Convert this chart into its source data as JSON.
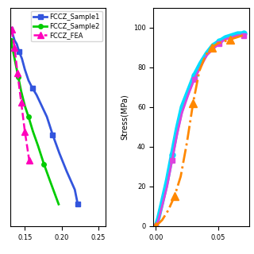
{
  "left_plot": {
    "xlim": [
      0.13,
      0.26
    ],
    "ylim": [
      25,
      85
    ],
    "xticks": [
      0.15,
      0.2,
      0.25
    ],
    "yticks": [],
    "sample1": {
      "x": [
        0.13,
        0.133,
        0.136,
        0.139,
        0.142,
        0.146,
        0.15,
        0.155,
        0.16,
        0.166,
        0.173,
        0.18,
        0.188,
        0.197,
        0.207,
        0.218,
        0.222
      ],
      "y": [
        79,
        78,
        76,
        75,
        73,
        71,
        68,
        65,
        63,
        61,
        58,
        55,
        50,
        45,
        40,
        35,
        31
      ],
      "color": "#3355dd",
      "linewidth": 2.0,
      "marker": "s",
      "markersize": 4,
      "markevery": 4,
      "label": "FCCZ_Sample1"
    },
    "sample2": {
      "x": [
        0.131,
        0.134,
        0.137,
        0.141,
        0.145,
        0.15,
        0.155,
        0.161,
        0.168,
        0.176,
        0.185,
        0.196
      ],
      "y": [
        76,
        73,
        70,
        66,
        62,
        58,
        55,
        51,
        47,
        42,
        37,
        31
      ],
      "color": "#00cc00",
      "linewidth": 2.0,
      "marker": "o",
      "markersize": 4,
      "markevery": 3,
      "label": "FCCZ_Sample2"
    },
    "fea": {
      "x": [
        0.132,
        0.136,
        0.14,
        0.145,
        0.15,
        0.156
      ],
      "y": [
        79,
        74,
        67,
        59,
        51,
        43
      ],
      "color": "#ff00bb",
      "linewidth": 1.8,
      "linestyle": "--",
      "marker": "^",
      "markersize": 6,
      "markevery": 1,
      "label": "FCCZ_FEA"
    }
  },
  "right_plot": {
    "xlim": [
      -0.002,
      0.075
    ],
    "ylim": [
      0,
      110
    ],
    "xticks": [
      0.0,
      0.05
    ],
    "yticks": [
      0,
      20,
      40,
      60,
      80,
      100
    ],
    "ylabel": "Stress(MPa)",
    "sample1": {
      "x": [
        0.0,
        0.002,
        0.005,
        0.009,
        0.013,
        0.017,
        0.021,
        0.026,
        0.031,
        0.036,
        0.041,
        0.046,
        0.051,
        0.056,
        0.061,
        0.066,
        0.071
      ],
      "y": [
        0,
        4,
        12,
        23,
        36,
        49,
        60,
        68,
        76,
        82,
        87,
        91,
        93,
        95,
        96,
        97,
        97
      ],
      "color": "#00ddff",
      "linewidth": 4.0,
      "marker": "o",
      "markersize": 5,
      "markevery": 4,
      "label": "FCCZ_Sample1"
    },
    "sample2": {
      "x": [
        0.0,
        0.002,
        0.005,
        0.009,
        0.013,
        0.017,
        0.021,
        0.026,
        0.031,
        0.036,
        0.041,
        0.046,
        0.051,
        0.056,
        0.061,
        0.066,
        0.071
      ],
      "y": [
        0,
        3,
        10,
        20,
        33,
        46,
        57,
        66,
        74,
        80,
        86,
        89,
        92,
        94,
        95,
        96,
        96
      ],
      "color": "#dd44dd",
      "linewidth": 2.0,
      "marker": "s",
      "markersize": 4,
      "markevery": 4,
      "label": "FCCZ_Sample2"
    },
    "fea": {
      "x": [
        0.0,
        0.005,
        0.01,
        0.015,
        0.02,
        0.025,
        0.03,
        0.035,
        0.04,
        0.045,
        0.05,
        0.055,
        0.06,
        0.065,
        0.07
      ],
      "y": [
        0,
        3,
        8,
        15,
        25,
        42,
        62,
        78,
        86,
        90,
        92,
        93,
        94,
        95,
        96
      ],
      "color": "#ff8800",
      "linewidth": 2.0,
      "linestyle": "-.",
      "marker": "^",
      "markersize": 7,
      "markevery": 3,
      "label": "FCCZ_FEA"
    }
  },
  "bg_color": "#ffffff",
  "legend_fontsize": 6.0
}
